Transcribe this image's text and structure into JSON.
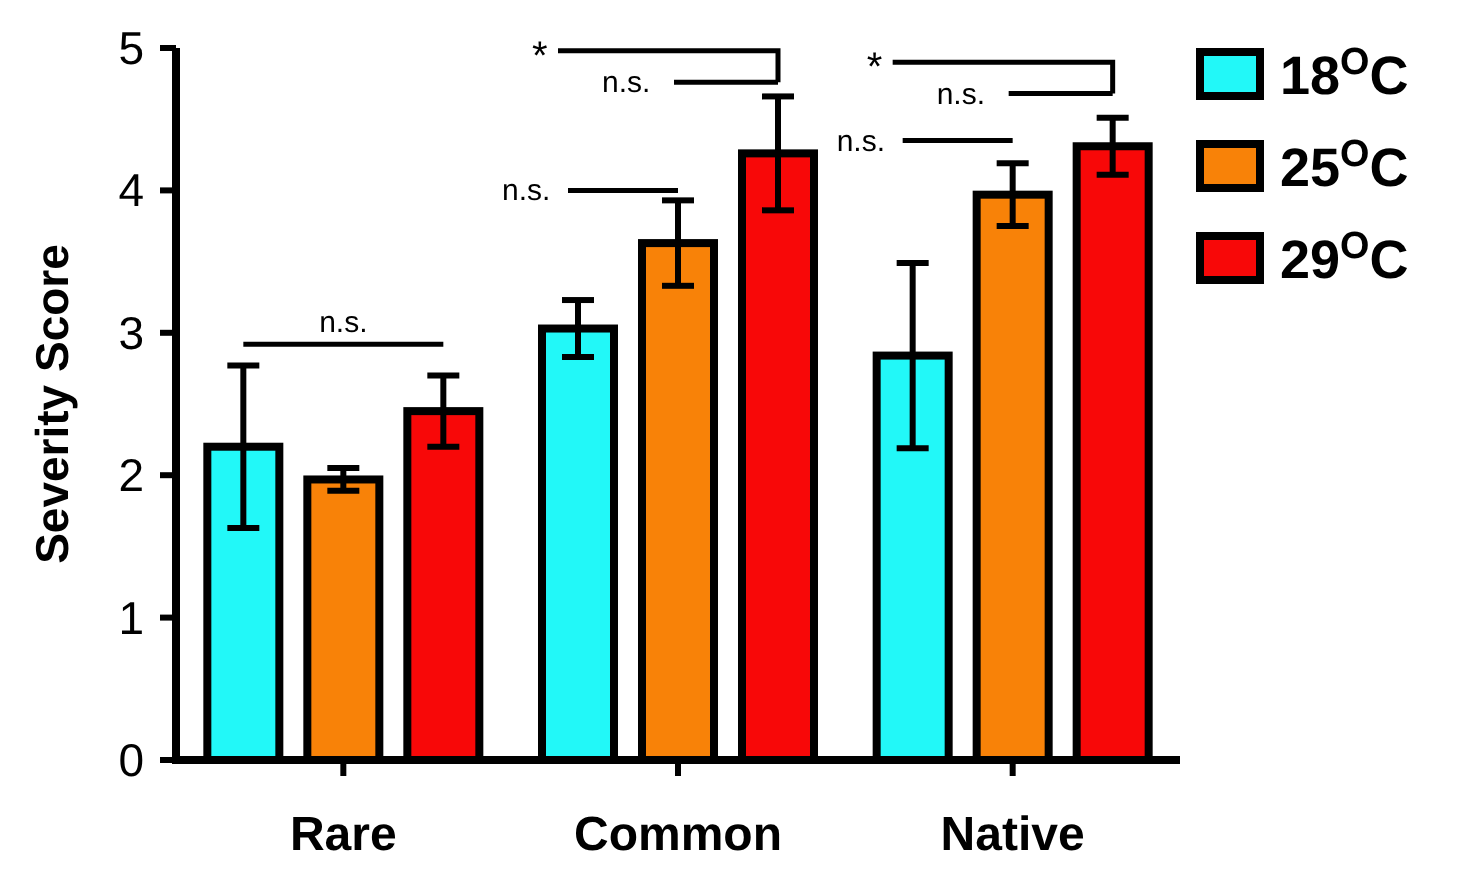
{
  "chart_data": {
    "type": "bar",
    "ylabel": "Severity Score",
    "categories": [
      "Rare",
      "Common",
      "Native"
    ],
    "series": [
      {
        "name": "18$^{O}$C",
        "color": "#22f8f8",
        "values": [
          2.2,
          3.03,
          2.84
        ],
        "errors": [
          0.57,
          0.2,
          0.65
        ]
      },
      {
        "name": "25$^{O}$C",
        "color": "#f88208",
        "values": [
          1.97,
          3.63,
          3.97
        ],
        "errors": [
          0.08,
          0.3,
          0.22
        ]
      },
      {
        "name": "29$^{O}$C",
        "color": "#f80808",
        "values": [
          2.45,
          4.26,
          4.31
        ],
        "errors": [
          0.25,
          0.4,
          0.2
        ]
      }
    ],
    "ylim": [
      0,
      5
    ],
    "yticks": [
      0,
      1,
      2,
      3,
      4,
      5
    ],
    "legend": "top right",
    "grid": false,
    "annotations": [
      "n.s.",
      "n.s.",
      "n.s.",
      "*",
      "n.s.",
      "n.s.",
      "*"
    ]
  }
}
